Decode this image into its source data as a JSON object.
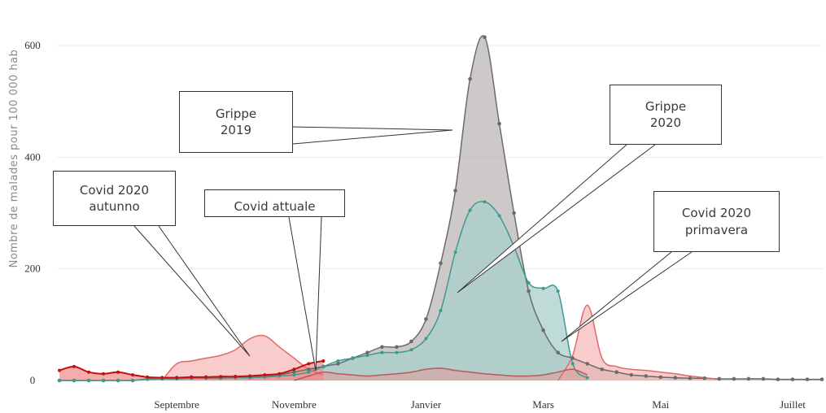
{
  "chart_data": {
    "type": "area",
    "ylabel": "Nombre de malades pour 100 000 hab",
    "ylim": [
      0,
      650
    ],
    "yticks": [
      0,
      200,
      400,
      600
    ],
    "x_ticks": [
      "Septembre",
      "Novembre",
      "Janvier",
      "Mars",
      "Mai",
      "Juillet"
    ],
    "x_tick_weeks": [
      8,
      16,
      25,
      33,
      41,
      50
    ],
    "grid": true,
    "series": [
      {
        "name": "Grippe 2019",
        "color": "#6b6b6b",
        "fill": "#b7b2b0",
        "x": [
          0,
          1,
          2,
          3,
          4,
          5,
          6,
          7,
          8,
          9,
          10,
          11,
          12,
          13,
          14,
          15,
          16,
          17,
          18,
          19,
          20,
          21,
          22,
          23,
          24,
          25,
          26,
          27,
          28,
          29,
          30,
          31,
          32,
          33,
          34,
          35,
          36,
          37,
          38,
          39,
          40,
          41,
          42,
          43,
          44,
          45,
          46,
          47,
          48,
          49,
          50,
          51,
          52
        ],
        "values": [
          0,
          0,
          0,
          0,
          0,
          0,
          3,
          5,
          5,
          6,
          6,
          6,
          7,
          7,
          8,
          10,
          15,
          20,
          25,
          30,
          40,
          50,
          60,
          60,
          70,
          110,
          210,
          340,
          540,
          615,
          460,
          300,
          160,
          90,
          50,
          40,
          30,
          20,
          15,
          10,
          8,
          6,
          5,
          4,
          4,
          3,
          3,
          3,
          3,
          2,
          2,
          2,
          2
        ]
      },
      {
        "name": "Grippe 2020",
        "color": "#3f9a8f",
        "fill": "#a9cfcb",
        "x": [
          0,
          1,
          2,
          3,
          4,
          5,
          6,
          7,
          8,
          9,
          10,
          11,
          12,
          13,
          14,
          15,
          16,
          17,
          18,
          19,
          20,
          21,
          22,
          23,
          24,
          25,
          26,
          27,
          28,
          29,
          30,
          31,
          32,
          33,
          34,
          35,
          36
        ],
        "values": [
          0,
          0,
          0,
          0,
          0,
          0,
          2,
          3,
          3,
          4,
          4,
          4,
          5,
          5,
          6,
          8,
          10,
          15,
          25,
          35,
          40,
          45,
          50,
          50,
          55,
          75,
          125,
          230,
          305,
          320,
          295,
          240,
          175,
          165,
          160,
          30,
          5
        ]
      },
      {
        "name": "Covid 2020 primavera",
        "color": "#e06a6a",
        "fill": "#f3b7b4",
        "x": [
          34,
          35,
          36,
          37,
          38,
          39,
          40,
          41,
          42,
          43,
          44,
          45
        ],
        "values": [
          0,
          45,
          135,
          40,
          25,
          20,
          18,
          15,
          12,
          8,
          5,
          2
        ]
      },
      {
        "name": "Covid 2020 autunno",
        "color": "#e06a6a",
        "fill": "#f3b7b4",
        "x": [
          7,
          8,
          9,
          10,
          11,
          12,
          13,
          14,
          15,
          16,
          17,
          18
        ],
        "values": [
          0,
          30,
          35,
          40,
          45,
          55,
          75,
          80,
          60,
          40,
          20,
          10
        ]
      },
      {
        "name": "Covid attuale",
        "color": "#c01010",
        "fill": "#f08a8a",
        "x": [
          0,
          1,
          2,
          3,
          4,
          5,
          6,
          7,
          8,
          9,
          10,
          11,
          12,
          13,
          14,
          15,
          16,
          17,
          18
        ],
        "values": [
          18,
          25,
          15,
          12,
          15,
          10,
          6,
          5,
          5,
          6,
          6,
          7,
          7,
          8,
          10,
          12,
          20,
          30,
          35
        ]
      },
      {
        "name": "",
        "color": "#b85a5a",
        "fill": "#d9a5a5",
        "x": [
          16,
          17,
          18,
          19,
          20,
          21,
          22,
          23,
          24,
          25,
          26,
          27,
          28,
          29,
          30,
          31,
          32,
          33,
          34,
          35,
          36
        ],
        "values": [
          0,
          8,
          15,
          12,
          10,
          8,
          10,
          12,
          15,
          20,
          22,
          18,
          15,
          12,
          10,
          8,
          8,
          10,
          15,
          20,
          10
        ]
      }
    ],
    "annotations": [
      {
        "text": "Grippe\n2019"
      },
      {
        "text": "Grippe\n2020"
      },
      {
        "text": "Covid 2020\nautunno"
      },
      {
        "text": "Covid attuale"
      },
      {
        "text": "Covid 2020\nprimavera"
      }
    ]
  }
}
